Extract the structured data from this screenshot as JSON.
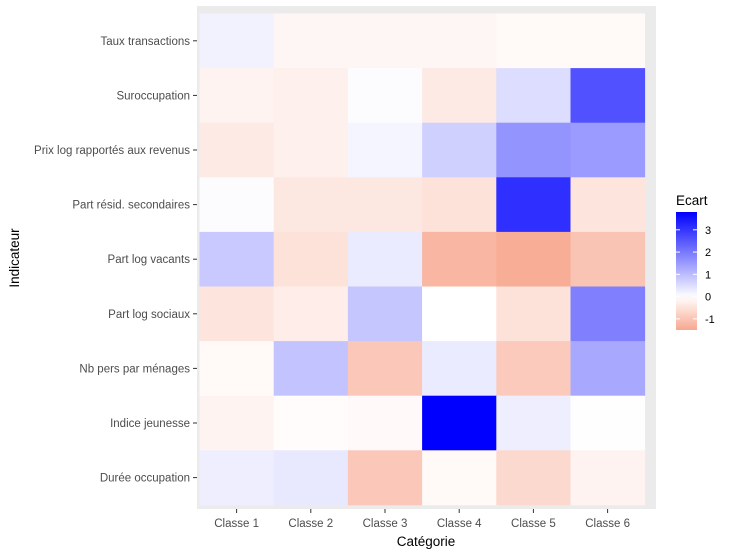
{
  "chart_data": {
    "type": "heatmap",
    "xlabel": "Catégorie",
    "ylabel": "Indicateur",
    "x_categories": [
      "Classe 1",
      "Classe 2",
      "Classe 3",
      "Classe 4",
      "Classe 5",
      "Classe 6"
    ],
    "y_categories": [
      "Taux transactions",
      "Suroccupation",
      "Prix log rapportés aux revenus",
      "Part résid. secondaires",
      "Part log vacants",
      "Part log sociaux",
      "Nb pers par ménages",
      "Indice jeunesse",
      "Durée occupation"
    ],
    "values": [
      [
        0.2,
        -0.15,
        -0.15,
        -0.15,
        -0.1,
        -0.1
      ],
      [
        -0.2,
        -0.25,
        0.05,
        -0.35,
        0.5,
        2.6
      ],
      [
        -0.35,
        -0.25,
        0.15,
        0.7,
        1.6,
        1.5
      ],
      [
        0.05,
        -0.4,
        -0.4,
        -0.5,
        3.1,
        -0.45
      ],
      [
        0.8,
        -0.5,
        0.3,
        -1.25,
        -1.4,
        -1.0
      ],
      [
        -0.45,
        -0.3,
        0.85,
        0.0,
        -0.5,
        1.9
      ],
      [
        -0.1,
        0.9,
        -0.95,
        0.3,
        -0.9,
        1.3
      ],
      [
        -0.2,
        -0.05,
        -0.08,
        3.8,
        0.25,
        0.02
      ],
      [
        0.25,
        0.35,
        -0.95,
        -0.1,
        -0.65,
        -0.2
      ]
    ],
    "legend": {
      "title": "Ecart",
      "ticks": [
        -1,
        0,
        1,
        2,
        3
      ],
      "range": [
        -1.5,
        3.8
      ],
      "position": "right"
    },
    "colors": {
      "low": "#f8a78f",
      "mid": "#ffffff",
      "high": "#0000ff",
      "panel_background": "#ebebeb",
      "grid": "#ffffff"
    },
    "grid": true
  }
}
